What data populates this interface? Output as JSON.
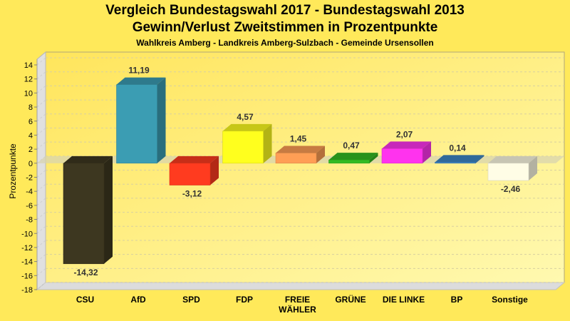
{
  "chart_data": {
    "type": "bar",
    "title": "Vergleich Bundestagswahl 2017 - Bundestagswahl 2013",
    "subtitle": "Gewinn/Verlust Zweitstimmen in Prozentpunkte",
    "subtitle2": "Wahlkreis Amberg - Landkreis Amberg-Sulzbach - Gemeinde Ursensollen",
    "xlabel": "",
    "ylabel": "Prozentpunkte",
    "ylim": [
      -18,
      14
    ],
    "ytick_step": 2,
    "grid": true,
    "three_d": true,
    "categories": [
      "CSU",
      "AfD",
      "SPD",
      "FDP",
      "FREIE\nWÄHLER",
      "GRÜNE",
      "DIE LINKE",
      "BP",
      "Sonstige"
    ],
    "values": [
      -14.32,
      11.19,
      -3.12,
      4.57,
      1.45,
      0.47,
      2.07,
      0.14,
      -2.46
    ],
    "value_labels": [
      "-14,32",
      "11,19",
      "-3,12",
      "4,57",
      "1,45",
      "0,47",
      "2,07",
      "0,14",
      "-2,46"
    ],
    "colors": [
      "#3D3720",
      "#3B9DB3",
      "#FF3B1F",
      "#FFFF1E",
      "#FF9E55",
      "#33BB22",
      "#FF33EE",
      "#3C86C6",
      "#FFFDE6"
    ]
  }
}
